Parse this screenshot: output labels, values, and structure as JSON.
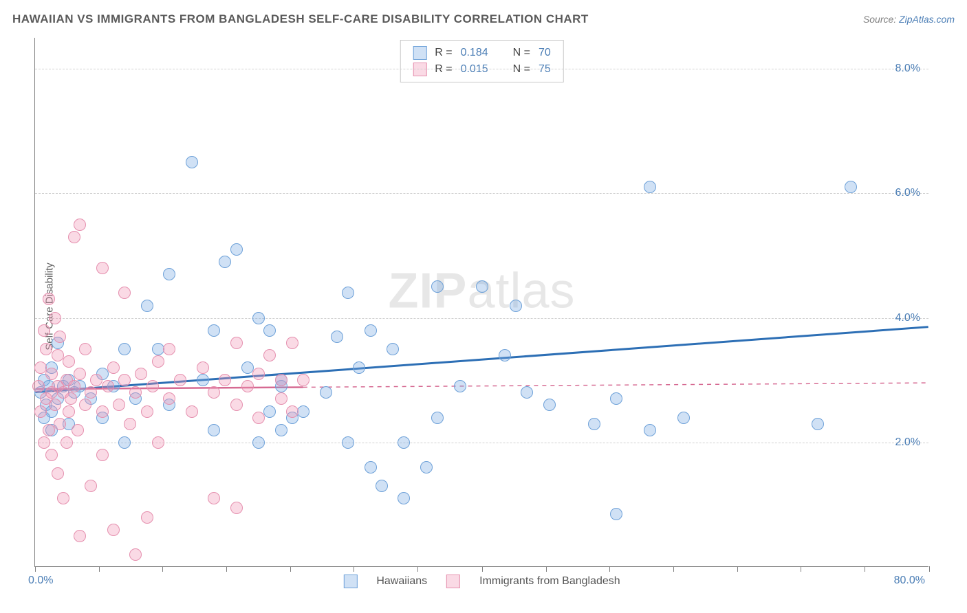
{
  "title": "HAWAIIAN VS IMMIGRANTS FROM BANGLADESH SELF-CARE DISABILITY CORRELATION CHART",
  "source_label": "Source:",
  "source_name": "ZipAtlas.com",
  "y_axis_label": "Self-Care Disability",
  "watermark": {
    "bold": "ZIP",
    "light": "atlas"
  },
  "chart": {
    "type": "scatter",
    "background_color": "#ffffff",
    "grid_color": "#d0d0d0",
    "axis_color": "#808080",
    "xlim": [
      0,
      80
    ],
    "ylim": [
      0,
      8.5
    ],
    "x_origin_label": "0.0%",
    "x_max_label": "80.0%",
    "x_ticks": [
      0,
      5.7,
      11.4,
      17.1,
      22.8,
      28.5,
      34.2,
      40,
      45.7,
      51.4,
      57.1,
      62.8,
      68.5,
      74.2,
      80
    ],
    "y_grid": [
      {
        "value": 2.0,
        "label": "2.0%"
      },
      {
        "value": 4.0,
        "label": "4.0%"
      },
      {
        "value": 6.0,
        "label": "6.0%"
      },
      {
        "value": 8.0,
        "label": "8.0%"
      }
    ],
    "marker_radius": 9,
    "marker_border_width": 1.5,
    "series": [
      {
        "name": "Hawaiians",
        "fill": "rgba(120,170,225,0.35)",
        "stroke": "#6ca0d8",
        "R_label": "R =",
        "R": "0.184",
        "N_label": "N =",
        "N": "70",
        "trend": {
          "color": "#2d6fb5",
          "width": 3,
          "x1": 0,
          "y1": 2.8,
          "x2": 80,
          "y2": 3.85,
          "solid_until_x": 80
        },
        "points": [
          [
            0.5,
            2.8
          ],
          [
            0.8,
            3.0
          ],
          [
            1.0,
            2.6
          ],
          [
            1.2,
            2.9
          ],
          [
            1.5,
            3.2
          ],
          [
            1.5,
            2.5
          ],
          [
            2.0,
            3.6
          ],
          [
            2.0,
            2.7
          ],
          [
            2.5,
            2.9
          ],
          [
            3.0,
            3.0
          ],
          [
            3.0,
            2.3
          ],
          [
            3.5,
            2.8
          ],
          [
            4.0,
            2.9
          ],
          [
            5,
            2.7
          ],
          [
            6,
            3.1
          ],
          [
            6,
            2.4
          ],
          [
            7,
            2.9
          ],
          [
            8,
            3.5
          ],
          [
            8,
            2.0
          ],
          [
            9,
            2.7
          ],
          [
            10,
            4.2
          ],
          [
            11,
            3.5
          ],
          [
            12,
            2.6
          ],
          [
            12,
            4.7
          ],
          [
            14,
            6.5
          ],
          [
            15,
            3.0
          ],
          [
            16,
            2.2
          ],
          [
            16,
            3.8
          ],
          [
            17,
            4.9
          ],
          [
            18,
            5.1
          ],
          [
            19,
            3.2
          ],
          [
            20,
            2.0
          ],
          [
            20,
            4.0
          ],
          [
            21,
            2.5
          ],
          [
            21,
            3.8
          ],
          [
            22,
            2.9
          ],
          [
            22,
            2.2
          ],
          [
            22,
            3.0
          ],
          [
            23,
            2.4
          ],
          [
            24,
            2.5
          ],
          [
            26,
            2.8
          ],
          [
            27,
            3.7
          ],
          [
            28,
            4.4
          ],
          [
            28,
            2.0
          ],
          [
            29,
            3.2
          ],
          [
            30,
            1.6
          ],
          [
            30,
            3.8
          ],
          [
            31,
            1.3
          ],
          [
            32,
            3.5
          ],
          [
            33,
            2.0
          ],
          [
            33,
            1.1
          ],
          [
            35,
            1.6
          ],
          [
            36,
            4.5
          ],
          [
            36,
            2.4
          ],
          [
            38,
            2.9
          ],
          [
            40,
            4.5
          ],
          [
            42,
            3.4
          ],
          [
            43,
            4.2
          ],
          [
            44,
            2.8
          ],
          [
            46,
            2.6
          ],
          [
            50,
            2.3
          ],
          [
            52,
            2.7
          ],
          [
            52,
            0.85
          ],
          [
            55,
            2.2
          ],
          [
            55,
            6.1
          ],
          [
            58,
            2.4
          ],
          [
            70,
            2.3
          ],
          [
            73,
            6.1
          ],
          [
            0.8,
            2.4
          ],
          [
            1.5,
            2.2
          ]
        ]
      },
      {
        "name": "Immigrants from Bangladesh",
        "fill": "rgba(240,150,180,0.35)",
        "stroke": "#e58fae",
        "R_label": "R =",
        "R": "0.015",
        "N_label": "N =",
        "N": "75",
        "trend": {
          "color": "#d66a92",
          "width": 2.5,
          "x1": 0,
          "y1": 2.85,
          "x2": 80,
          "y2": 2.95,
          "solid_until_x": 24
        },
        "points": [
          [
            0.3,
            2.9
          ],
          [
            0.5,
            2.5
          ],
          [
            0.5,
            3.2
          ],
          [
            0.8,
            2.0
          ],
          [
            0.8,
            3.8
          ],
          [
            1.0,
            2.7
          ],
          [
            1.0,
            3.5
          ],
          [
            1.2,
            2.2
          ],
          [
            1.2,
            4.3
          ],
          [
            1.5,
            2.8
          ],
          [
            1.5,
            3.1
          ],
          [
            1.5,
            1.8
          ],
          [
            1.8,
            2.6
          ],
          [
            1.8,
            4.0
          ],
          [
            2.0,
            2.9
          ],
          [
            2.0,
            3.4
          ],
          [
            2.0,
            1.5
          ],
          [
            2.2,
            2.3
          ],
          [
            2.2,
            3.7
          ],
          [
            2.5,
            2.8
          ],
          [
            2.5,
            1.1
          ],
          [
            2.8,
            3.0
          ],
          [
            2.8,
            2.0
          ],
          [
            3.0,
            2.5
          ],
          [
            3.0,
            3.3
          ],
          [
            3.2,
            2.7
          ],
          [
            3.5,
            5.3
          ],
          [
            3.5,
            2.9
          ],
          [
            3.8,
            2.2
          ],
          [
            4.0,
            3.1
          ],
          [
            4.0,
            5.5
          ],
          [
            4.0,
            0.5
          ],
          [
            4.5,
            2.6
          ],
          [
            4.5,
            3.5
          ],
          [
            5.0,
            2.8
          ],
          [
            5.0,
            1.3
          ],
          [
            5.5,
            3.0
          ],
          [
            6.0,
            2.5
          ],
          [
            6.0,
            4.8
          ],
          [
            6.0,
            1.8
          ],
          [
            6.5,
            2.9
          ],
          [
            7.0,
            3.2
          ],
          [
            7.0,
            0.6
          ],
          [
            7.5,
            2.6
          ],
          [
            8.0,
            3.0
          ],
          [
            8.0,
            4.4
          ],
          [
            8.5,
            2.3
          ],
          [
            9.0,
            2.8
          ],
          [
            9.0,
            0.2
          ],
          [
            9.5,
            3.1
          ],
          [
            10,
            2.5
          ],
          [
            10,
            0.8
          ],
          [
            10.5,
            2.9
          ],
          [
            11,
            3.3
          ],
          [
            11,
            2.0
          ],
          [
            12,
            2.7
          ],
          [
            12,
            3.5
          ],
          [
            13,
            3.0
          ],
          [
            14,
            2.5
          ],
          [
            15,
            3.2
          ],
          [
            16,
            2.8
          ],
          [
            16,
            1.1
          ],
          [
            17,
            3.0
          ],
          [
            18,
            2.6
          ],
          [
            18,
            3.6
          ],
          [
            18,
            0.95
          ],
          [
            19,
            2.9
          ],
          [
            20,
            3.1
          ],
          [
            20,
            2.4
          ],
          [
            21,
            3.4
          ],
          [
            22,
            2.7
          ],
          [
            22,
            3.0
          ],
          [
            23,
            3.6
          ],
          [
            23,
            2.5
          ],
          [
            24,
            3.0
          ]
        ]
      }
    ]
  },
  "bottom_legend": {
    "series1_label": "Hawaiians",
    "series2_label": "Immigrants from Bangladesh"
  }
}
